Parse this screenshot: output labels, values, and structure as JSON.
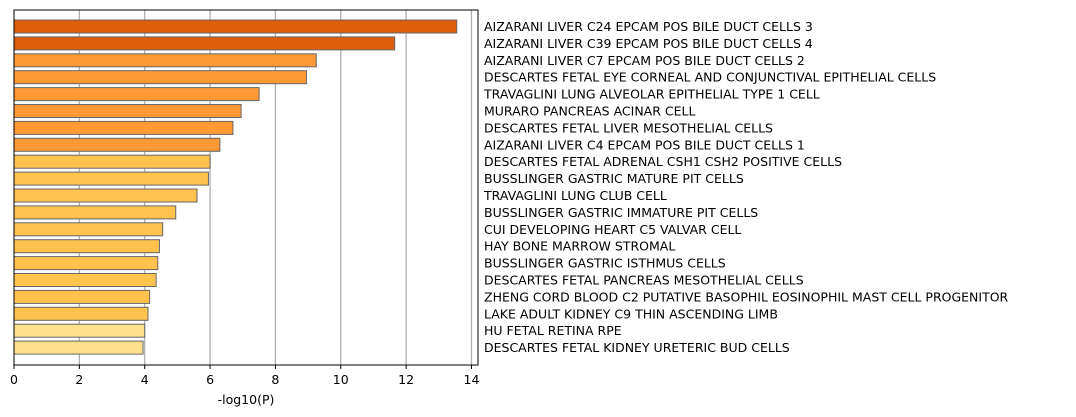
{
  "chart_data": {
    "type": "bar",
    "orientation": "horizontal",
    "title": "",
    "xlabel": "-log10(P)",
    "ylabel": "",
    "xlim": [
      0,
      14.2
    ],
    "xticks": [
      0,
      2,
      4,
      6,
      8,
      10,
      12,
      14
    ],
    "grid": "vertical",
    "categories": [
      "AIZARANI LIVER C24 EPCAM POS BILE DUCT CELLS 3",
      "AIZARANI LIVER C39 EPCAM POS BILE DUCT CELLS 4",
      "AIZARANI LIVER C7 EPCAM POS BILE DUCT CELLS 2",
      "DESCARTES FETAL EYE CORNEAL AND CONJUNCTIVAL EPITHELIAL CELLS",
      "TRAVAGLINI LUNG ALVEOLAR EPITHELIAL TYPE 1 CELL",
      "MURARO PANCREAS ACINAR CELL",
      "DESCARTES FETAL LIVER MESOTHELIAL CELLS",
      "AIZARANI LIVER C4 EPCAM POS BILE DUCT CELLS 1",
      "DESCARTES FETAL ADRENAL CSH1 CSH2 POSITIVE CELLS",
      "BUSSLINGER GASTRIC MATURE PIT CELLS",
      "TRAVAGLINI LUNG CLUB CELL",
      "BUSSLINGER GASTRIC IMMATURE PIT CELLS",
      "CUI DEVELOPING HEART C5 VALVAR CELL",
      "HAY BONE MARROW STROMAL",
      "BUSSLINGER GASTRIC ISTHMUS CELLS",
      "DESCARTES FETAL PANCREAS MESOTHELIAL CELLS",
      "ZHENG CORD BLOOD C2 PUTATIVE BASOPHIL EOSINOPHIL MAST CELL PROGENITOR",
      "LAKE ADULT KIDNEY C9 THIN ASCENDING LIMB",
      "HU FETAL RETINA RPE",
      "DESCARTES FETAL KIDNEY URETERIC BUD CELLS"
    ],
    "values": [
      13.55,
      11.65,
      9.25,
      8.95,
      7.5,
      6.95,
      6.7,
      6.3,
      6.0,
      5.95,
      5.6,
      4.95,
      4.55,
      4.45,
      4.4,
      4.35,
      4.15,
      4.1,
      4.0,
      3.95
    ],
    "colors": [
      "#de5e0c",
      "#de5e0c",
      "#ff9933",
      "#ff9933",
      "#ff9933",
      "#ff9933",
      "#ff9933",
      "#ff9933",
      "#ffc34d",
      "#ffc34d",
      "#ffc34d",
      "#ffc34d",
      "#ffc34d",
      "#ffc34d",
      "#ffc34d",
      "#ffc34d",
      "#ffc34d",
      "#ffc34d",
      "#ffe08c",
      "#ffe08c"
    ],
    "bar_edge_color": "#666666",
    "grid_color": "#b0b0b0"
  }
}
